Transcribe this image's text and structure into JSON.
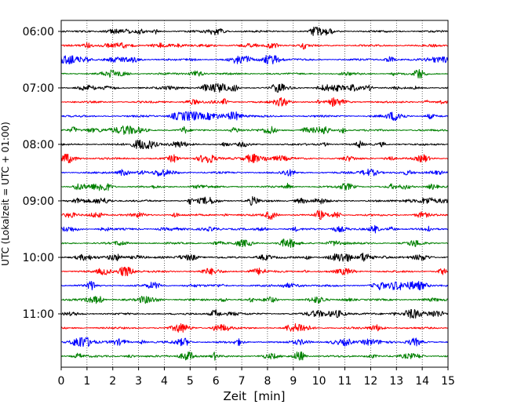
{
  "chart_data": {
    "type": "line",
    "chart_kind": "helicorder",
    "xlabel": "Zeit  [min]",
    "ylabel": "UTC (Lokalzeit = UTC + 01:00)",
    "x_ticks": [
      "0",
      "1",
      "2",
      "3",
      "4",
      "5",
      "6",
      "7",
      "8",
      "9",
      "10",
      "11",
      "12",
      "13",
      "14",
      "15"
    ],
    "xlim": [
      0,
      15
    ],
    "y_ticks": [
      "06:00",
      "07:00",
      "08:00",
      "09:00",
      "10:00",
      "11:00"
    ],
    "trace_interval_min": 15,
    "first_trace": "06:00",
    "trace_count": 24,
    "trace_colors": [
      "#000000",
      "#ff0000",
      "#0000ff",
      "#008000"
    ],
    "vertical_grid": "dotted"
  }
}
